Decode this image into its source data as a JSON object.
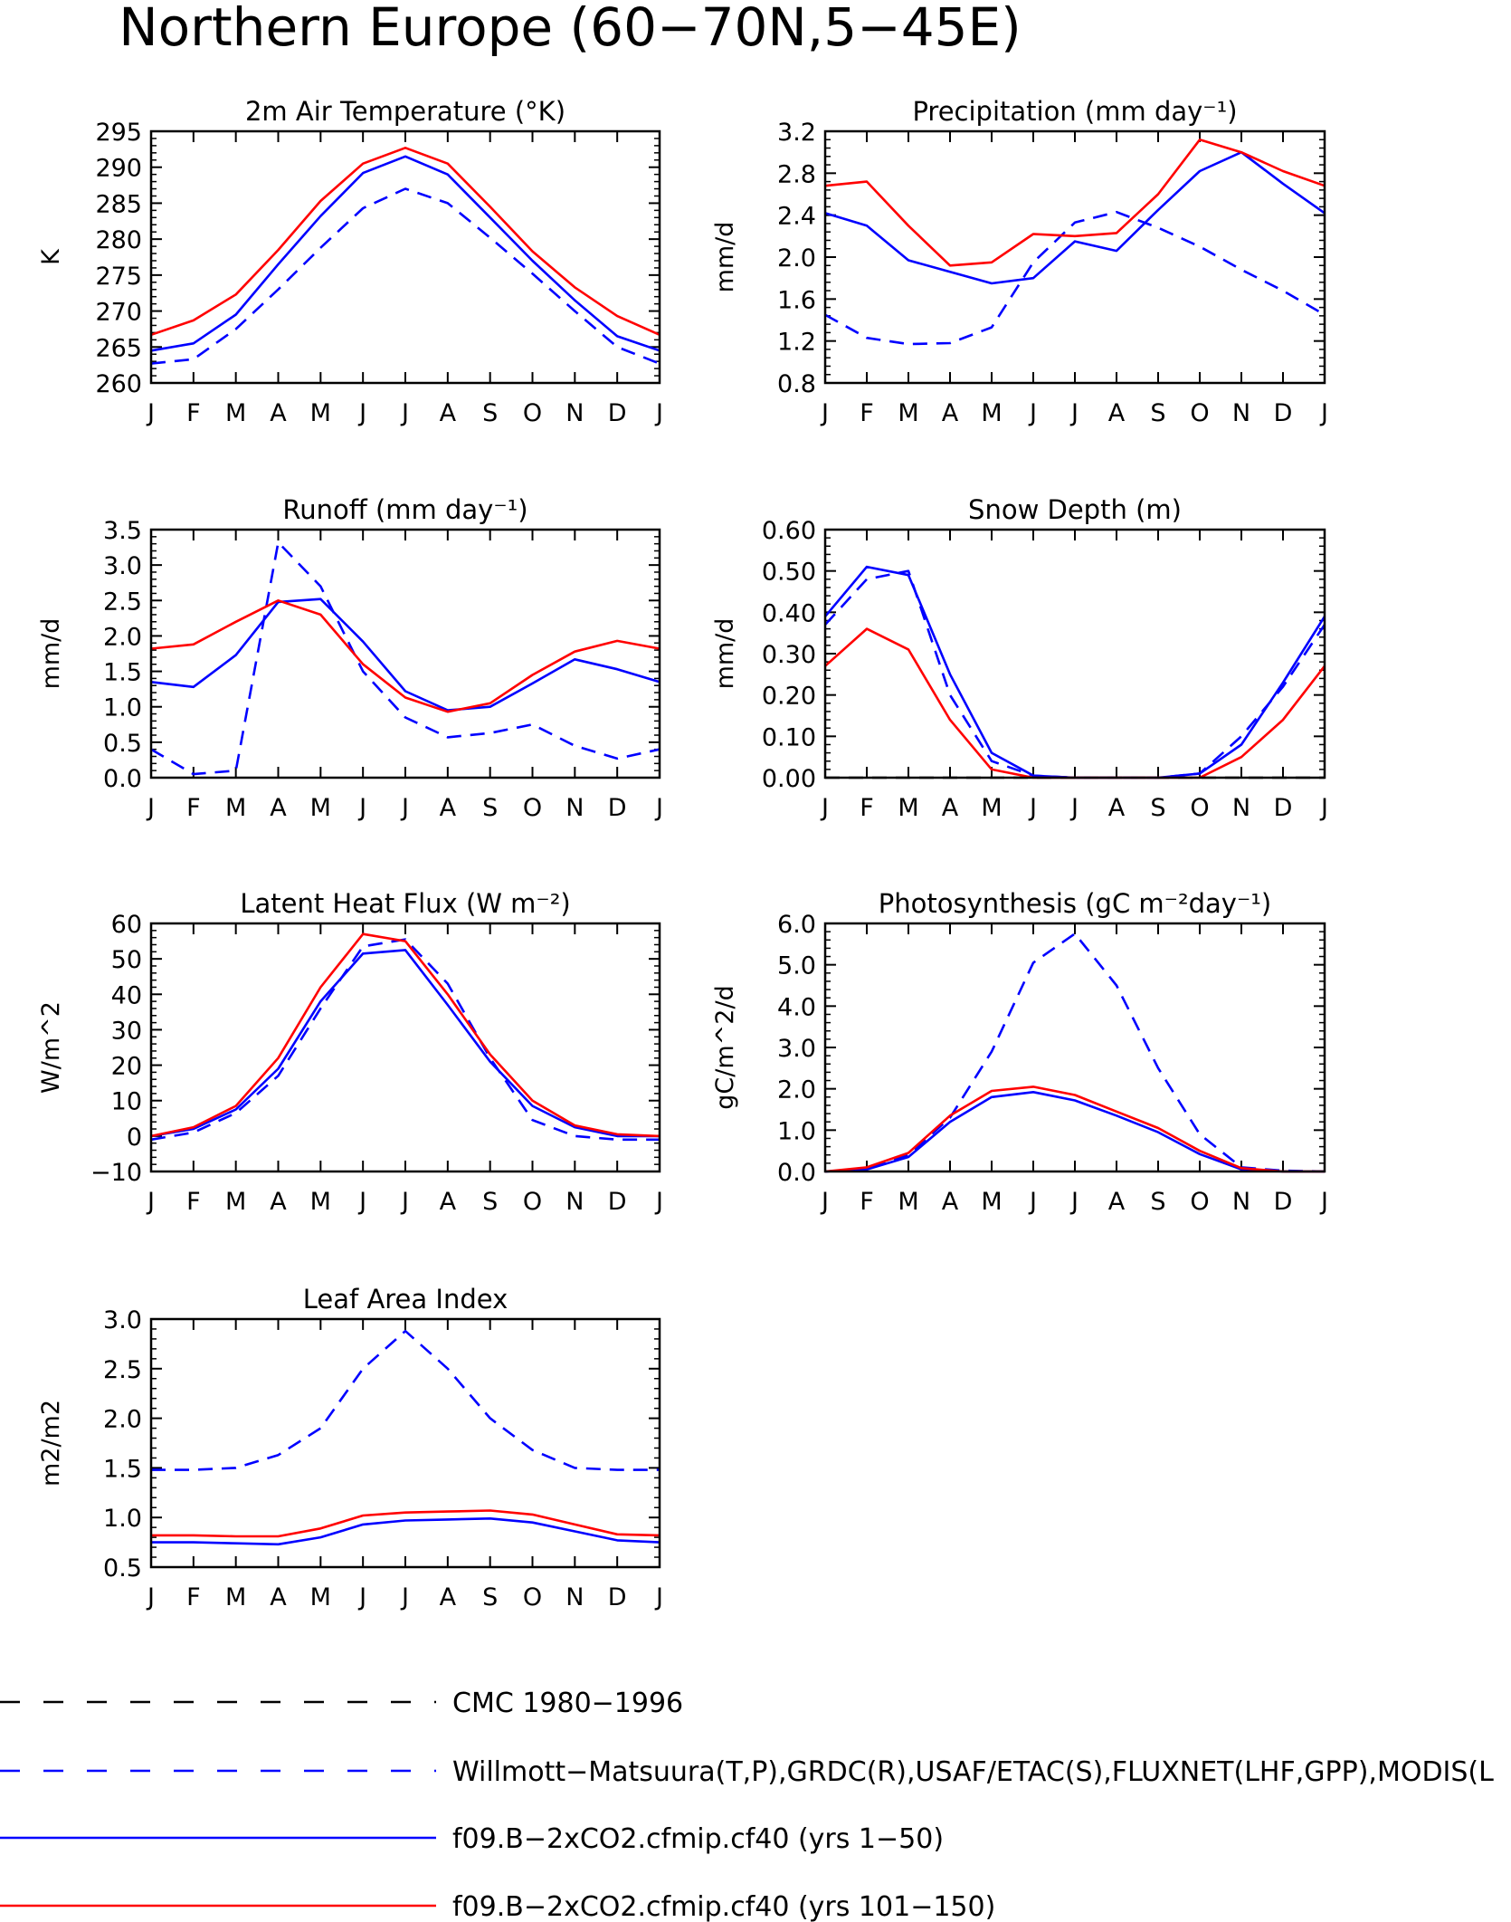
{
  "page_title": "Northern Europe (60−70N,5−45E)",
  "months": [
    "J",
    "F",
    "M",
    "A",
    "M",
    "J",
    "J",
    "A",
    "S",
    "O",
    "N",
    "D",
    "J"
  ],
  "legend": [
    {
      "label": "CMC 1980−1996",
      "color": "#000000",
      "dash": true
    },
    {
      "label": "Willmott−Matsuura(T,P),GRDC(R),USAF/ETAC(S),FLUXNET(LHF,GPP),MODIS(L",
      "color": "#0000ff",
      "dash": true
    },
    {
      "label": "f09.B−2xCO2.cfmip.cf40 (yrs 1−50)",
      "color": "#0000ff",
      "dash": false
    },
    {
      "label": "f09.B−2xCO2.cfmip.cf40 (yrs 101−150)",
      "color": "#ff0000",
      "dash": false
    }
  ],
  "chart_data": [
    {
      "type": "line",
      "title": "2m Air Temperature (°K)",
      "ylabel": "K",
      "ylim": [
        260,
        295
      ],
      "yticks": [
        "260",
        "265",
        "270",
        "275",
        "280",
        "285",
        "290",
        "295"
      ],
      "x": [
        "J",
        "F",
        "M",
        "A",
        "M",
        "J",
        "J",
        "A",
        "S",
        "O",
        "N",
        "D",
        "J"
      ],
      "series": [
        {
          "values": [
            262.7,
            263.3,
            267.5,
            273,
            278.8,
            284.3,
            287,
            285,
            280.2,
            275.2,
            270,
            265,
            262.7
          ],
          "color": "#0000ff",
          "dash": true
        },
        {
          "values": [
            264.5,
            265.5,
            269.5,
            276.5,
            283.2,
            289.2,
            291.5,
            289,
            283,
            277,
            271.5,
            266.5,
            264.5
          ],
          "color": "#0000ff",
          "dash": false
        },
        {
          "values": [
            266.7,
            268.7,
            272.3,
            278.5,
            285.3,
            290.5,
            292.7,
            290.5,
            284.5,
            278.3,
            273.3,
            269.3,
            266.7
          ],
          "color": "#ff0000",
          "dash": false
        }
      ]
    },
    {
      "type": "line",
      "title": "Precipitation (mm day⁻¹)",
      "ylabel": "mm/d",
      "ylim": [
        0.8,
        3.2
      ],
      "yticks": [
        "0.8",
        "1.2",
        "1.6",
        "2.0",
        "2.4",
        "2.8",
        "3.2"
      ],
      "x": [
        "J",
        "F",
        "M",
        "A",
        "M",
        "J",
        "J",
        "A",
        "S",
        "O",
        "N",
        "D",
        "J"
      ],
      "series": [
        {
          "values": [
            1.45,
            1.23,
            1.17,
            1.18,
            1.33,
            1.95,
            2.33,
            2.43,
            2.28,
            2.1,
            1.88,
            1.68,
            1.45
          ],
          "color": "#0000ff",
          "dash": true
        },
        {
          "values": [
            2.42,
            2.3,
            1.97,
            1.86,
            1.75,
            1.8,
            2.15,
            2.06,
            2.45,
            2.82,
            3.0,
            2.7,
            2.42
          ],
          "color": "#0000ff",
          "dash": false
        },
        {
          "values": [
            2.68,
            2.72,
            2.3,
            1.92,
            1.95,
            2.22,
            2.2,
            2.23,
            2.6,
            3.12,
            3.0,
            2.82,
            2.68
          ],
          "color": "#ff0000",
          "dash": false
        }
      ]
    },
    {
      "type": "line",
      "title": "Runoff (mm day⁻¹)",
      "ylabel": "mm/d",
      "ylim": [
        0,
        3.5
      ],
      "yticks": [
        "0.0",
        "0.5",
        "1.0",
        "1.5",
        "2.0",
        "2.5",
        "3.0",
        "3.5"
      ],
      "x": [
        "J",
        "F",
        "M",
        "A",
        "M",
        "J",
        "J",
        "A",
        "S",
        "O",
        "N",
        "D",
        "J"
      ],
      "series": [
        {
          "values": [
            0.4,
            0.05,
            0.1,
            3.32,
            2.7,
            1.5,
            0.85,
            0.57,
            0.63,
            0.75,
            0.45,
            0.27,
            0.4
          ],
          "color": "#0000ff",
          "dash": true
        },
        {
          "values": [
            1.35,
            1.28,
            1.73,
            2.48,
            2.52,
            1.92,
            1.22,
            0.95,
            1.0,
            1.33,
            1.67,
            1.53,
            1.35
          ],
          "color": "#0000ff",
          "dash": false
        },
        {
          "values": [
            1.82,
            1.88,
            2.2,
            2.5,
            2.3,
            1.6,
            1.13,
            0.93,
            1.05,
            1.45,
            1.78,
            1.93,
            1.82
          ],
          "color": "#ff0000",
          "dash": false
        }
      ]
    },
    {
      "type": "line",
      "title": "Snow Depth (m)",
      "ylabel": "mm/d",
      "ylim": [
        0,
        0.6
      ],
      "yticks": [
        "0.00",
        "0.10",
        "0.20",
        "0.30",
        "0.40",
        "0.50",
        "0.60"
      ],
      "x": [
        "J",
        "F",
        "M",
        "A",
        "M",
        "J",
        "J",
        "A",
        "S",
        "O",
        "N",
        "D",
        "J"
      ],
      "series": [
        {
          "values": [
            0,
            0,
            0,
            0,
            0,
            0,
            0,
            0,
            0,
            0,
            0,
            0,
            0
          ],
          "color": "#000000",
          "dash": true
        },
        {
          "values": [
            0.37,
            0.48,
            0.5,
            0.2,
            0.04,
            0.005,
            0,
            0,
            0,
            0.01,
            0.1,
            0.22,
            0.37
          ],
          "color": "#0000ff",
          "dash": true
        },
        {
          "values": [
            0.39,
            0.51,
            0.49,
            0.25,
            0.06,
            0.005,
            0,
            0,
            0,
            0.01,
            0.08,
            0.23,
            0.39
          ],
          "color": "#0000ff",
          "dash": false
        },
        {
          "values": [
            0.27,
            0.36,
            0.31,
            0.14,
            0.02,
            0,
            0,
            0,
            0,
            0,
            0.05,
            0.14,
            0.27
          ],
          "color": "#ff0000",
          "dash": false
        }
      ]
    },
    {
      "type": "line",
      "title": "Latent Heat Flux (W m⁻²)",
      "ylabel": "W/m^2",
      "ylim": [
        -10,
        60
      ],
      "yticks": [
        "−10",
        "0",
        "10",
        "20",
        "30",
        "40",
        "50",
        "60"
      ],
      "x": [
        "J",
        "F",
        "M",
        "A",
        "M",
        "J",
        "J",
        "A",
        "S",
        "O",
        "N",
        "D",
        "J"
      ],
      "series": [
        {
          "values": [
            -1,
            1,
            6.5,
            17,
            36,
            53.5,
            55.5,
            43,
            22,
            4.5,
            0,
            -1,
            -1
          ],
          "color": "#0000ff",
          "dash": true
        },
        {
          "values": [
            0,
            2,
            7.5,
            19,
            38,
            51.5,
            52.5,
            37,
            21,
            8.5,
            2.5,
            0,
            0
          ],
          "color": "#0000ff",
          "dash": false
        },
        {
          "values": [
            0,
            2.5,
            8.5,
            22,
            42,
            57,
            55,
            40,
            23,
            10,
            3,
            0.5,
            0
          ],
          "color": "#ff0000",
          "dash": false
        }
      ]
    },
    {
      "type": "line",
      "title": "Photosynthesis (gC m⁻²day⁻¹)",
      "ylabel": "gC/m^2/d",
      "ylim": [
        0,
        6
      ],
      "yticks": [
        "0.0",
        "1.0",
        "2.0",
        "3.0",
        "4.0",
        "5.0",
        "6.0"
      ],
      "x": [
        "J",
        "F",
        "M",
        "A",
        "M",
        "J",
        "J",
        "A",
        "S",
        "O",
        "N",
        "D",
        "J"
      ],
      "series": [
        {
          "values": [
            0,
            0.05,
            0.4,
            1.3,
            2.9,
            5.05,
            5.75,
            4.5,
            2.5,
            0.9,
            0.1,
            0.02,
            0
          ],
          "color": "#0000ff",
          "dash": true
        },
        {
          "values": [
            0,
            0.05,
            0.35,
            1.2,
            1.8,
            1.92,
            1.72,
            1.35,
            0.95,
            0.42,
            0.05,
            0,
            0
          ],
          "color": "#0000ff",
          "dash": false
        },
        {
          "values": [
            0,
            0.1,
            0.45,
            1.35,
            1.95,
            2.05,
            1.85,
            1.45,
            1.05,
            0.5,
            0.08,
            0,
            0
          ],
          "color": "#ff0000",
          "dash": false
        }
      ]
    },
    {
      "type": "line",
      "title": "Leaf Area Index",
      "ylabel": "m2/m2",
      "ylim": [
        0.5,
        3.0
      ],
      "yticks": [
        "0.5",
        "1.0",
        "1.5",
        "2.0",
        "2.5",
        "3.0"
      ],
      "x": [
        "J",
        "F",
        "M",
        "A",
        "M",
        "J",
        "J",
        "A",
        "S",
        "O",
        "N",
        "D",
        "J"
      ],
      "series": [
        {
          "values": [
            1.48,
            1.48,
            1.5,
            1.63,
            1.9,
            2.5,
            2.88,
            2.5,
            2.0,
            1.68,
            1.5,
            1.48,
            1.48
          ],
          "color": "#0000ff",
          "dash": true
        },
        {
          "values": [
            0.75,
            0.75,
            0.74,
            0.73,
            0.8,
            0.93,
            0.97,
            0.98,
            0.99,
            0.95,
            0.86,
            0.77,
            0.75
          ],
          "color": "#0000ff",
          "dash": false
        },
        {
          "values": [
            0.82,
            0.82,
            0.81,
            0.81,
            0.89,
            1.02,
            1.05,
            1.06,
            1.07,
            1.03,
            0.93,
            0.83,
            0.82
          ],
          "color": "#ff0000",
          "dash": false
        }
      ]
    }
  ]
}
